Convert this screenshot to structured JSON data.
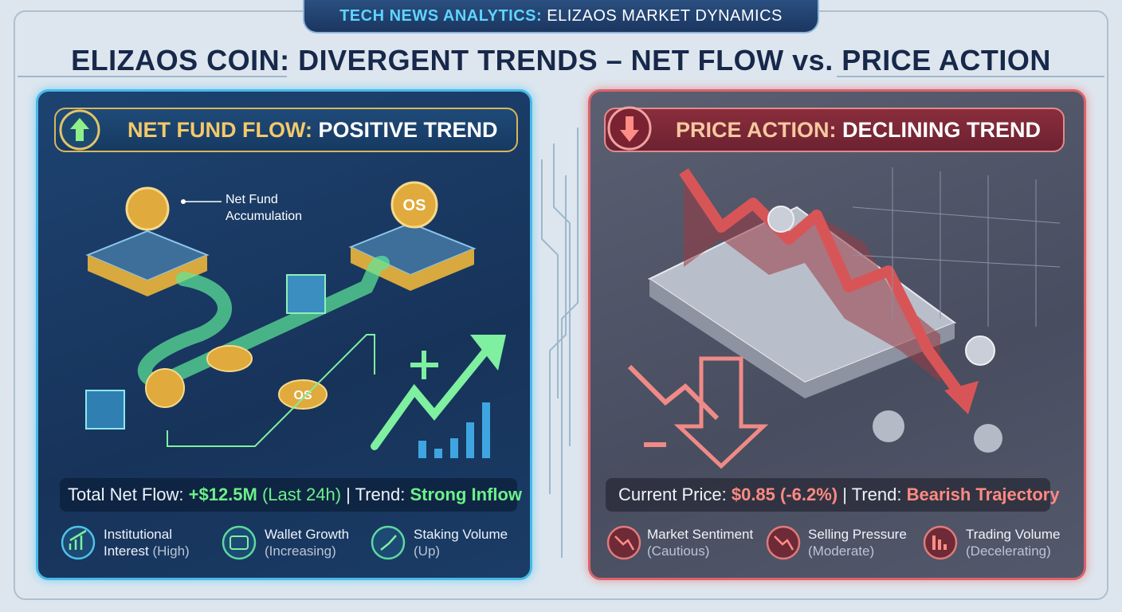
{
  "header": {
    "tag_prefix": "TECH NEWS ANALYTICS:",
    "tag_rest": "ELIZAOS MARKET DYNAMICS",
    "title": "ELIZAOS COIN: DIVERGENT TRENDS – NET FLOW vs. PRICE ACTION"
  },
  "panels": [
    {
      "heading_key": "NET FUND FLOW:",
      "heading_value": "POSITIVE TREND",
      "annotation": [
        "Net Fund",
        "Accumulation"
      ],
      "coin_labels": [
        "OS",
        "OS"
      ],
      "summary": {
        "label": "Total Net Flow:",
        "value": "+$12.5M",
        "period": "(Last 24h)",
        "trend_label": "| Trend:",
        "trend": "Strong Inflow"
      },
      "indicators": [
        {
          "name": "Institutional Interest",
          "status": "(High)"
        },
        {
          "name": "Wallet Growth",
          "status": "(Increasing)"
        },
        {
          "name": "Staking Volume",
          "status": "(Up)"
        }
      ]
    },
    {
      "heading_key": "PRICE ACTION:",
      "heading_value": "DECLINING TREND",
      "summary": {
        "label": "Current Price:",
        "value": "$0.85 (-6.2%)",
        "trend_label": "| Trend:",
        "trend": "Bearish Trajectory"
      },
      "indicators": [
        {
          "name": "Market Sentiment",
          "status": "(Cautious)"
        },
        {
          "name": "Selling Pressure",
          "status": "(Moderate)"
        },
        {
          "name": "Trading Volume",
          "status": "(Decelerating)"
        }
      ]
    }
  ]
}
